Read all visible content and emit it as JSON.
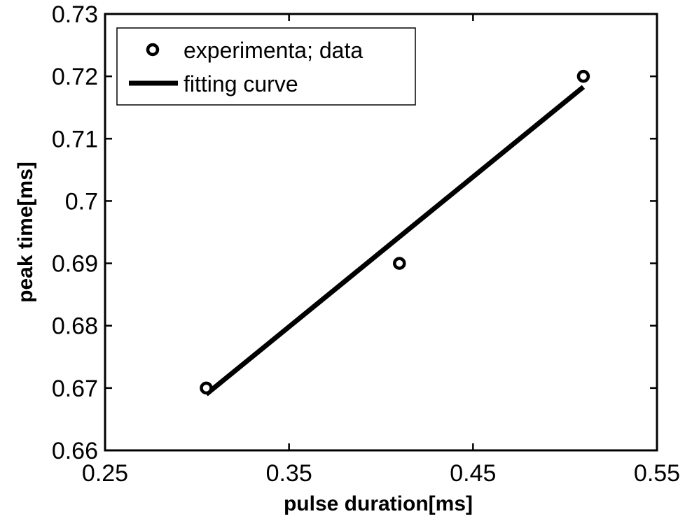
{
  "chart_data": {
    "type": "line",
    "title": "",
    "xlabel": "pulse duration[ms]",
    "ylabel": "peak time[ms]",
    "xlim": [
      0.25,
      0.55
    ],
    "ylim": [
      0.66,
      0.73
    ],
    "grid": false,
    "legend_position": "top-left",
    "x_ticks": [
      0.25,
      0.35,
      0.45,
      0.55
    ],
    "x_tick_labels": [
      "0.25",
      "0.35",
      "0.45",
      "0.55"
    ],
    "y_ticks": [
      0.66,
      0.67,
      0.68,
      0.69,
      0.7,
      0.71,
      0.72,
      0.73
    ],
    "y_tick_labels": [
      "0.66",
      "0.67",
      "0.68",
      "0.69",
      "0.7",
      "0.71",
      "0.72",
      "0.73"
    ],
    "series": [
      {
        "name": "experimenta; data",
        "kind": "scatter",
        "marker": "circle",
        "x": [
          0.305,
          0.41,
          0.51
        ],
        "y": [
          0.67,
          0.69,
          0.72
        ]
      },
      {
        "name": "fitting curve",
        "kind": "line",
        "x": [
          0.305,
          0.51
        ],
        "y": [
          0.669,
          0.7183
        ]
      }
    ],
    "colors": {
      "foreground": "#000000",
      "background": "#ffffff"
    }
  }
}
